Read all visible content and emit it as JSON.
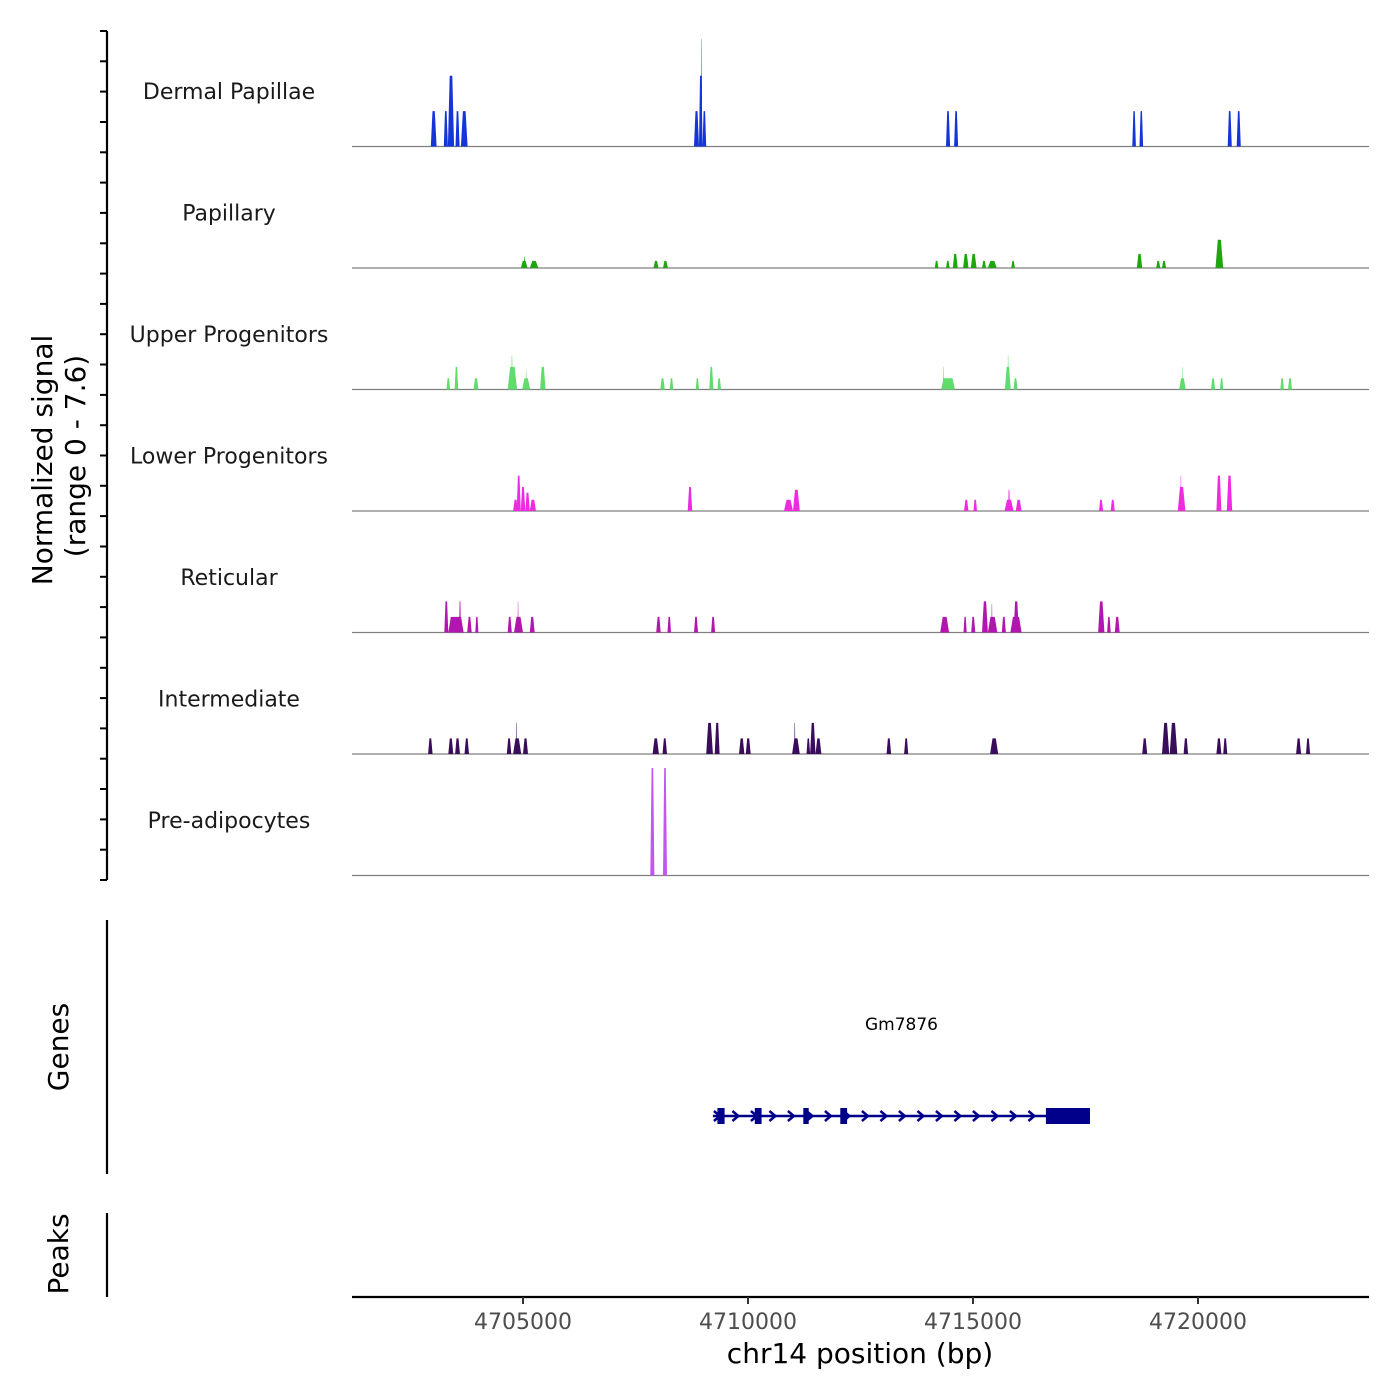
{
  "chart_data": {
    "type": "area",
    "title": "",
    "ylabel_line1": "Normalized signal",
    "ylabel_line2": "(range 0 - 7.6)",
    "y_range": [
      0,
      7.6
    ],
    "xlabel": "chr14 position (bp)",
    "xlim": [
      4701200,
      4723800
    ],
    "x_ticks": [
      4705000,
      4710000,
      4715000,
      4720000
    ],
    "x_tick_labels": [
      "4705000",
      "4710000",
      "4715000",
      "4720000"
    ],
    "series": [
      {
        "name": "Dermal Papillae",
        "color": "#1535d9",
        "peaks": [
          {
            "start": 4702950,
            "end": 4703080,
            "height": 2.5
          },
          {
            "start": 4703240,
            "end": 4703330,
            "height": 2.5
          },
          {
            "start": 4703330,
            "end": 4703470,
            "height": 5.0
          },
          {
            "start": 4703500,
            "end": 4703590,
            "height": 2.5
          },
          {
            "start": 4703620,
            "end": 4703770,
            "height": 2.5
          },
          {
            "start": 4708800,
            "end": 4708910,
            "height": 2.5
          },
          {
            "start": 4708910,
            "end": 4708990,
            "height": 5.0
          },
          {
            "start": 4708960,
            "end": 4708980,
            "height": 7.6
          },
          {
            "start": 4708990,
            "end": 4709070,
            "height": 2.5
          },
          {
            "start": 4714400,
            "end": 4714490,
            "height": 2.5
          },
          {
            "start": 4714580,
            "end": 4714670,
            "height": 2.5
          },
          {
            "start": 4718540,
            "end": 4718620,
            "height": 2.5
          },
          {
            "start": 4718700,
            "end": 4718780,
            "height": 2.5
          },
          {
            "start": 4720660,
            "end": 4720750,
            "height": 2.5
          },
          {
            "start": 4720860,
            "end": 4720950,
            "height": 2.5
          }
        ]
      },
      {
        "name": "Papillary",
        "color": "#1fa50f",
        "peaks": [
          {
            "start": 4704950,
            "end": 4705100,
            "height": 0.5
          },
          {
            "start": 4705020,
            "end": 4705050,
            "height": 0.8
          },
          {
            "start": 4705150,
            "end": 4705340,
            "height": 0.5
          },
          {
            "start": 4707900,
            "end": 4708010,
            "height": 0.5
          },
          {
            "start": 4708110,
            "end": 4708220,
            "height": 0.5
          },
          {
            "start": 4714150,
            "end": 4714230,
            "height": 0.5
          },
          {
            "start": 4714400,
            "end": 4714480,
            "height": 0.5
          },
          {
            "start": 4714550,
            "end": 4714660,
            "height": 1.0
          },
          {
            "start": 4714780,
            "end": 4714900,
            "height": 1.0
          },
          {
            "start": 4714950,
            "end": 4715080,
            "height": 1.0
          },
          {
            "start": 4715200,
            "end": 4715290,
            "height": 0.5
          },
          {
            "start": 4715330,
            "end": 4715530,
            "height": 0.5
          },
          {
            "start": 4715850,
            "end": 4715930,
            "height": 0.5
          },
          {
            "start": 4718640,
            "end": 4718760,
            "height": 1.0
          },
          {
            "start": 4719070,
            "end": 4719160,
            "height": 0.5
          },
          {
            "start": 4719200,
            "end": 4719290,
            "height": 0.5
          },
          {
            "start": 4720390,
            "end": 4720560,
            "height": 2.0
          }
        ]
      },
      {
        "name": "Upper Progenitors",
        "color": "#5fdc6c",
        "peaks": [
          {
            "start": 4703300,
            "end": 4703380,
            "height": 0.8
          },
          {
            "start": 4703480,
            "end": 4703560,
            "height": 1.6
          },
          {
            "start": 4703900,
            "end": 4704010,
            "height": 0.8
          },
          {
            "start": 4704660,
            "end": 4704870,
            "height": 1.6
          },
          {
            "start": 4704740,
            "end": 4704770,
            "height": 2.4
          },
          {
            "start": 4704980,
            "end": 4705160,
            "height": 0.8
          },
          {
            "start": 4705060,
            "end": 4705080,
            "height": 1.4
          },
          {
            "start": 4705380,
            "end": 4705500,
            "height": 1.6
          },
          {
            "start": 4708050,
            "end": 4708150,
            "height": 0.8
          },
          {
            "start": 4708260,
            "end": 4708340,
            "height": 0.8
          },
          {
            "start": 4708840,
            "end": 4708910,
            "height": 0.8
          },
          {
            "start": 4709140,
            "end": 4709230,
            "height": 1.6
          },
          {
            "start": 4709320,
            "end": 4709400,
            "height": 0.8
          },
          {
            "start": 4714290,
            "end": 4714600,
            "height": 0.8
          },
          {
            "start": 4714330,
            "end": 4714350,
            "height": 1.6
          },
          {
            "start": 4715710,
            "end": 4715840,
            "height": 1.6
          },
          {
            "start": 4715770,
            "end": 4715790,
            "height": 2.4
          },
          {
            "start": 4715900,
            "end": 4715990,
            "height": 0.8
          },
          {
            "start": 4719580,
            "end": 4719730,
            "height": 0.8
          },
          {
            "start": 4719640,
            "end": 4719660,
            "height": 1.6
          },
          {
            "start": 4720290,
            "end": 4720380,
            "height": 0.8
          },
          {
            "start": 4720490,
            "end": 4720560,
            "height": 0.8
          },
          {
            "start": 4721830,
            "end": 4721910,
            "height": 0.8
          },
          {
            "start": 4722000,
            "end": 4722090,
            "height": 0.8
          }
        ]
      },
      {
        "name": "Lower Progenitors",
        "color": "#ee2be0",
        "peaks": [
          {
            "start": 4704780,
            "end": 4704890,
            "height": 0.8
          },
          {
            "start": 4704860,
            "end": 4704950,
            "height": 2.5
          },
          {
            "start": 4704950,
            "end": 4705050,
            "height": 1.7
          },
          {
            "start": 4705050,
            "end": 4705150,
            "height": 1.3
          },
          {
            "start": 4705150,
            "end": 4705290,
            "height": 0.8
          },
          {
            "start": 4708660,
            "end": 4708760,
            "height": 1.7
          },
          {
            "start": 4710800,
            "end": 4711000,
            "height": 0.8
          },
          {
            "start": 4711000,
            "end": 4711150,
            "height": 1.5
          },
          {
            "start": 4714800,
            "end": 4714900,
            "height": 0.8
          },
          {
            "start": 4715010,
            "end": 4715090,
            "height": 0.8
          },
          {
            "start": 4715700,
            "end": 4715900,
            "height": 0.8
          },
          {
            "start": 4715780,
            "end": 4715820,
            "height": 1.5
          },
          {
            "start": 4715950,
            "end": 4716080,
            "height": 0.8
          },
          {
            "start": 4717800,
            "end": 4717890,
            "height": 0.8
          },
          {
            "start": 4718060,
            "end": 4718150,
            "height": 0.8
          },
          {
            "start": 4719550,
            "end": 4719720,
            "height": 1.7
          },
          {
            "start": 4719610,
            "end": 4719630,
            "height": 2.5
          },
          {
            "start": 4720410,
            "end": 4720520,
            "height": 2.5
          },
          {
            "start": 4720640,
            "end": 4720760,
            "height": 2.5
          }
        ]
      },
      {
        "name": "Reticular",
        "color": "#b117ae",
        "peaks": [
          {
            "start": 4703250,
            "end": 4703340,
            "height": 2.2
          },
          {
            "start": 4703340,
            "end": 4703680,
            "height": 1.1
          },
          {
            "start": 4703580,
            "end": 4703620,
            "height": 2.2
          },
          {
            "start": 4703760,
            "end": 4703860,
            "height": 1.1
          },
          {
            "start": 4703940,
            "end": 4704010,
            "height": 1.1
          },
          {
            "start": 4704660,
            "end": 4704750,
            "height": 1.1
          },
          {
            "start": 4704800,
            "end": 4705000,
            "height": 1.1
          },
          {
            "start": 4704880,
            "end": 4704900,
            "height": 2.2
          },
          {
            "start": 4705150,
            "end": 4705260,
            "height": 1.1
          },
          {
            "start": 4707960,
            "end": 4708060,
            "height": 1.1
          },
          {
            "start": 4708210,
            "end": 4708290,
            "height": 1.1
          },
          {
            "start": 4708800,
            "end": 4708890,
            "height": 1.1
          },
          {
            "start": 4709180,
            "end": 4709270,
            "height": 1.1
          },
          {
            "start": 4714270,
            "end": 4714470,
            "height": 1.1
          },
          {
            "start": 4714790,
            "end": 4714860,
            "height": 1.1
          },
          {
            "start": 4714960,
            "end": 4715050,
            "height": 1.1
          },
          {
            "start": 4715200,
            "end": 4715330,
            "height": 2.2
          },
          {
            "start": 4715330,
            "end": 4715540,
            "height": 1.1
          },
          {
            "start": 4715410,
            "end": 4715430,
            "height": 2.0
          },
          {
            "start": 4715640,
            "end": 4715730,
            "height": 1.1
          },
          {
            "start": 4715830,
            "end": 4716080,
            "height": 1.1
          },
          {
            "start": 4715900,
            "end": 4716020,
            "height": 2.2
          },
          {
            "start": 4717780,
            "end": 4717920,
            "height": 2.2
          },
          {
            "start": 4717980,
            "end": 4718060,
            "height": 1.1
          },
          {
            "start": 4718150,
            "end": 4718260,
            "height": 1.1
          }
        ]
      },
      {
        "name": "Intermediate",
        "color": "#3a0c5c",
        "peaks": [
          {
            "start": 4702890,
            "end": 4702990,
            "height": 1.1
          },
          {
            "start": 4703340,
            "end": 4703450,
            "height": 1.1
          },
          {
            "start": 4703490,
            "end": 4703600,
            "height": 1.1
          },
          {
            "start": 4703700,
            "end": 4703800,
            "height": 1.1
          },
          {
            "start": 4704640,
            "end": 4704740,
            "height": 1.1
          },
          {
            "start": 4704780,
            "end": 4704960,
            "height": 1.1
          },
          {
            "start": 4704850,
            "end": 4704870,
            "height": 2.2
          },
          {
            "start": 4705000,
            "end": 4705110,
            "height": 1.1
          },
          {
            "start": 4707880,
            "end": 4708020,
            "height": 1.1
          },
          {
            "start": 4708100,
            "end": 4708200,
            "height": 1.1
          },
          {
            "start": 4709070,
            "end": 4709220,
            "height": 2.2
          },
          {
            "start": 4709260,
            "end": 4709370,
            "height": 2.2
          },
          {
            "start": 4709800,
            "end": 4709920,
            "height": 1.1
          },
          {
            "start": 4709950,
            "end": 4710060,
            "height": 1.1
          },
          {
            "start": 4710980,
            "end": 4711150,
            "height": 1.1
          },
          {
            "start": 4711030,
            "end": 4711050,
            "height": 2.2
          },
          {
            "start": 4711300,
            "end": 4711380,
            "height": 1.1
          },
          {
            "start": 4711380,
            "end": 4711500,
            "height": 2.2
          },
          {
            "start": 4711500,
            "end": 4711630,
            "height": 1.1
          },
          {
            "start": 4713080,
            "end": 4713180,
            "height": 1.1
          },
          {
            "start": 4713470,
            "end": 4713560,
            "height": 1.1
          },
          {
            "start": 4715380,
            "end": 4715560,
            "height": 1.1
          },
          {
            "start": 4718760,
            "end": 4718870,
            "height": 1.1
          },
          {
            "start": 4719200,
            "end": 4719360,
            "height": 2.2
          },
          {
            "start": 4719370,
            "end": 4719540,
            "height": 2.2
          },
          {
            "start": 4719680,
            "end": 4719780,
            "height": 1.1
          },
          {
            "start": 4720410,
            "end": 4720520,
            "height": 1.1
          },
          {
            "start": 4720560,
            "end": 4720650,
            "height": 1.1
          },
          {
            "start": 4722180,
            "end": 4722290,
            "height": 1.1
          },
          {
            "start": 4722400,
            "end": 4722490,
            "height": 1.1
          }
        ]
      },
      {
        "name": "Pre-adipocytes",
        "color": "#c355f0",
        "peaks": [
          {
            "start": 4707830,
            "end": 4707920,
            "height": 7.6
          },
          {
            "start": 4708110,
            "end": 4708200,
            "height": 7.6
          }
        ]
      }
    ],
    "genes_label": "Genes",
    "peaks_label": "Peaks",
    "gene": {
      "name": "Gm7876",
      "color": "#00008b",
      "strand": "+",
      "start": 4709220,
      "end": 4717600,
      "exons": [
        {
          "start": 4709320,
          "end": 4709480
        },
        {
          "start": 4710150,
          "end": 4710300
        },
        {
          "start": 4711230,
          "end": 4711350
        },
        {
          "start": 4712050,
          "end": 4712200
        },
        {
          "start": 4716620,
          "end": 4717600
        }
      ]
    }
  }
}
